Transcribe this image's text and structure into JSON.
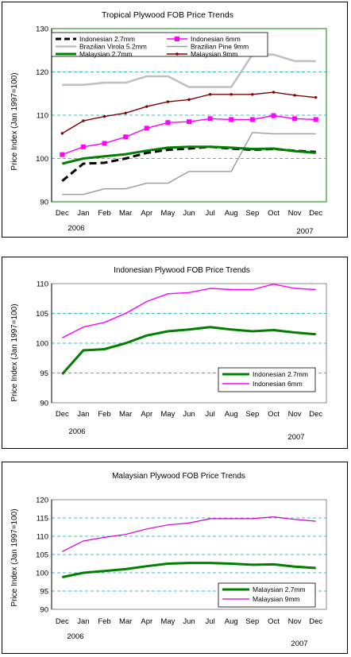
{
  "chart_data": [
    {
      "type": "line",
      "title": "Tropical Plywood FOB Price Trends",
      "ylabel": "Price Index (Jan 1997=100)",
      "categories": [
        "Dec",
        "Jan",
        "Feb",
        "Mar",
        "Apr",
        "May",
        "Jun",
        "Jul",
        "Aug",
        "Sep",
        "Oct",
        "Nov",
        "Dec"
      ],
      "year_labels": [
        "2006",
        "2007"
      ],
      "ylim": [
        90,
        130
      ],
      "yticks": [
        90,
        100,
        110,
        120,
        130
      ],
      "legend": "top-left",
      "grid": "horizontal dashed",
      "series": [
        {
          "name": "Indonesian 2.7mm",
          "color": "#000000",
          "dash": "dash",
          "marker": "none",
          "values": [
            94.8,
            98.8,
            99.0,
            100.0,
            101.3,
            102.0,
            102.3,
            102.7,
            102.3,
            102.0,
            102.2,
            101.8,
            101.5
          ]
        },
        {
          "name": "Indonesian 6mm",
          "color": "#ff00ff",
          "dash": "solid",
          "marker": "square",
          "values": [
            100.9,
            102.7,
            103.5,
            105.0,
            107.0,
            108.3,
            108.5,
            109.2,
            109.0,
            109.0,
            109.9,
            109.2,
            109.0
          ]
        },
        {
          "name": "Brazilian Virola 5.2mm",
          "color": "#c0c0c0",
          "dash": "solid",
          "marker": "none",
          "values": [
            117,
            117,
            117.5,
            117.5,
            119,
            119,
            116.5,
            116.5,
            116.5,
            124,
            124,
            122.5,
            122.5
          ]
        },
        {
          "name": "Brazilian Pine 9mm",
          "color": "#999999",
          "dash": "solid",
          "marker": "none",
          "values": [
            91.7,
            91.7,
            93,
            93,
            94.3,
            94.3,
            97,
            97,
            97,
            106,
            105.7,
            105.7,
            105.7
          ]
        },
        {
          "name": "Malaysian 2.7mm",
          "color": "#008000",
          "dash": "solid",
          "marker": "none",
          "values": [
            98.8,
            100.0,
            100.5,
            101.0,
            101.8,
            102.5,
            102.7,
            102.7,
            102.5,
            102.2,
            102.3,
            101.7,
            101.3
          ]
        },
        {
          "name": "Malaysian 9mm",
          "color": "#800000",
          "dash": "solid",
          "marker": "dot",
          "values": [
            105.8,
            108.7,
            109.7,
            110.5,
            112.0,
            113.1,
            113.6,
            114.8,
            114.8,
            114.8,
            115.3,
            114.6,
            114.1
          ]
        }
      ]
    },
    {
      "type": "line",
      "title": "Indonesian Plywood FOB Price Trends",
      "ylabel": "Price Index (Jan 1997=100)",
      "categories": [
        "Dec",
        "Jan",
        "Feb",
        "Mar",
        "Apr",
        "May",
        "Jun",
        "Jul",
        "Aug",
        "Sep",
        "Oct",
        "Nov",
        "Dec"
      ],
      "year_labels": [
        "2006",
        "2007"
      ],
      "ylim": [
        90,
        110
      ],
      "yticks": [
        90,
        95,
        100,
        105,
        110
      ],
      "legend": "bottom-right",
      "grid": "horizontal dashed",
      "series": [
        {
          "name": "Indonesian 2.7mm",
          "color": "#008000",
          "dash": "solid",
          "marker": "none",
          "values": [
            94.8,
            98.8,
            99.0,
            100.0,
            101.3,
            102.0,
            102.3,
            102.7,
            102.3,
            102.0,
            102.2,
            101.8,
            101.5
          ]
        },
        {
          "name": "Indonesian 6mm",
          "color": "#ff00ff",
          "dash": "solid",
          "marker": "none",
          "values": [
            100.9,
            102.7,
            103.5,
            105.0,
            107.0,
            108.3,
            108.5,
            109.2,
            109.0,
            109.0,
            109.9,
            109.2,
            109.0
          ]
        }
      ]
    },
    {
      "type": "line",
      "title": "Malaysian Plywood FOB Price Trends",
      "ylabel": "Price Index (Jan 1997=100)",
      "categories": [
        "Dec",
        "Jan",
        "Feb",
        "Mar",
        "Apr",
        "May",
        "Jun",
        "Jul",
        "Aug",
        "Sep",
        "Oct",
        "Nov",
        "Dec"
      ],
      "year_labels": [
        "2006",
        "2007"
      ],
      "ylim": [
        90,
        120
      ],
      "yticks": [
        90,
        95,
        100,
        105,
        110,
        115,
        120
      ],
      "legend": "bottom-right",
      "grid": "horizontal dashed",
      "series": [
        {
          "name": "Malaysian 2.7mm",
          "color": "#008000",
          "dash": "solid",
          "marker": "none",
          "values": [
            98.8,
            100.0,
            100.5,
            101.0,
            101.8,
            102.5,
            102.7,
            102.7,
            102.5,
            102.2,
            102.3,
            101.7,
            101.3
          ]
        },
        {
          "name": "Malaysian 9mm",
          "color": "#cc00cc",
          "dash": "solid",
          "marker": "none",
          "values": [
            105.8,
            108.7,
            109.7,
            110.5,
            112.0,
            113.1,
            113.6,
            114.8,
            114.8,
            114.8,
            115.3,
            114.6,
            114.1
          ]
        }
      ]
    }
  ]
}
